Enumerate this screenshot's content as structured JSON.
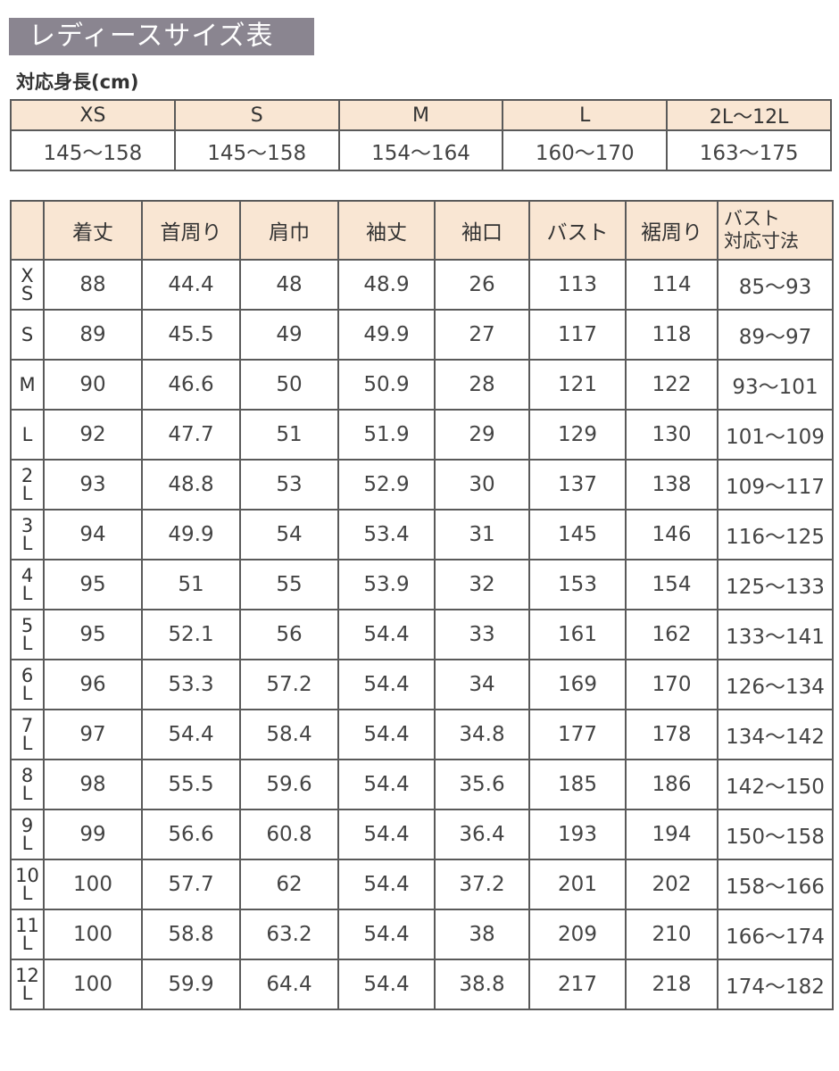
{
  "title": "レディースサイズ表",
  "height_table": {
    "caption": "対応身長(cm)",
    "headers": [
      "XS",
      "S",
      "M",
      "L",
      "2L〜12L"
    ],
    "values": [
      "145〜158",
      "145〜158",
      "154〜164",
      "160〜170",
      "163〜175"
    ]
  },
  "size_table": {
    "headers": [
      "",
      "着丈",
      "首周り",
      "肩巾",
      "袖丈",
      "袖口",
      "バスト",
      "裾周り",
      "バスト\n対応寸法"
    ],
    "rows": [
      [
        "XS",
        "88",
        "44.4",
        "48",
        "48.9",
        "26",
        "113",
        "114",
        "85〜93"
      ],
      [
        "S",
        "89",
        "45.5",
        "49",
        "49.9",
        "27",
        "117",
        "118",
        "89〜97"
      ],
      [
        "M",
        "90",
        "46.6",
        "50",
        "50.9",
        "28",
        "121",
        "122",
        "93〜101"
      ],
      [
        "L",
        "92",
        "47.7",
        "51",
        "51.9",
        "29",
        "129",
        "130",
        "101〜109"
      ],
      [
        "2L",
        "93",
        "48.8",
        "53",
        "52.9",
        "30",
        "137",
        "138",
        "109〜117"
      ],
      [
        "3L",
        "94",
        "49.9",
        "54",
        "53.4",
        "31",
        "145",
        "146",
        "116〜125"
      ],
      [
        "4L",
        "95",
        "51",
        "55",
        "53.9",
        "32",
        "153",
        "154",
        "125〜133"
      ],
      [
        "5L",
        "95",
        "52.1",
        "56",
        "54.4",
        "33",
        "161",
        "162",
        "133〜141"
      ],
      [
        "6L",
        "96",
        "53.3",
        "57.2",
        "54.4",
        "34",
        "169",
        "170",
        "126〜134"
      ],
      [
        "7L",
        "97",
        "54.4",
        "58.4",
        "54.4",
        "34.8",
        "177",
        "178",
        "134〜142"
      ],
      [
        "8L",
        "98",
        "55.5",
        "59.6",
        "54.4",
        "35.6",
        "185",
        "186",
        "142〜150"
      ],
      [
        "9L",
        "99",
        "56.6",
        "60.8",
        "54.4",
        "36.4",
        "193",
        "194",
        "150〜158"
      ],
      [
        "10L",
        "100",
        "57.7",
        "62",
        "54.4",
        "37.2",
        "201",
        "202",
        "158〜166"
      ],
      [
        "11L",
        "100",
        "58.8",
        "63.2",
        "54.4",
        "38",
        "209",
        "210",
        "166〜174"
      ],
      [
        "12L",
        "100",
        "59.9",
        "64.4",
        "54.4",
        "38.8",
        "217",
        "218",
        "174〜182"
      ]
    ]
  },
  "colors": {
    "title_bg": "#8a8590",
    "header_bg": "#f9e6d3",
    "border": "#5a5a5a"
  }
}
